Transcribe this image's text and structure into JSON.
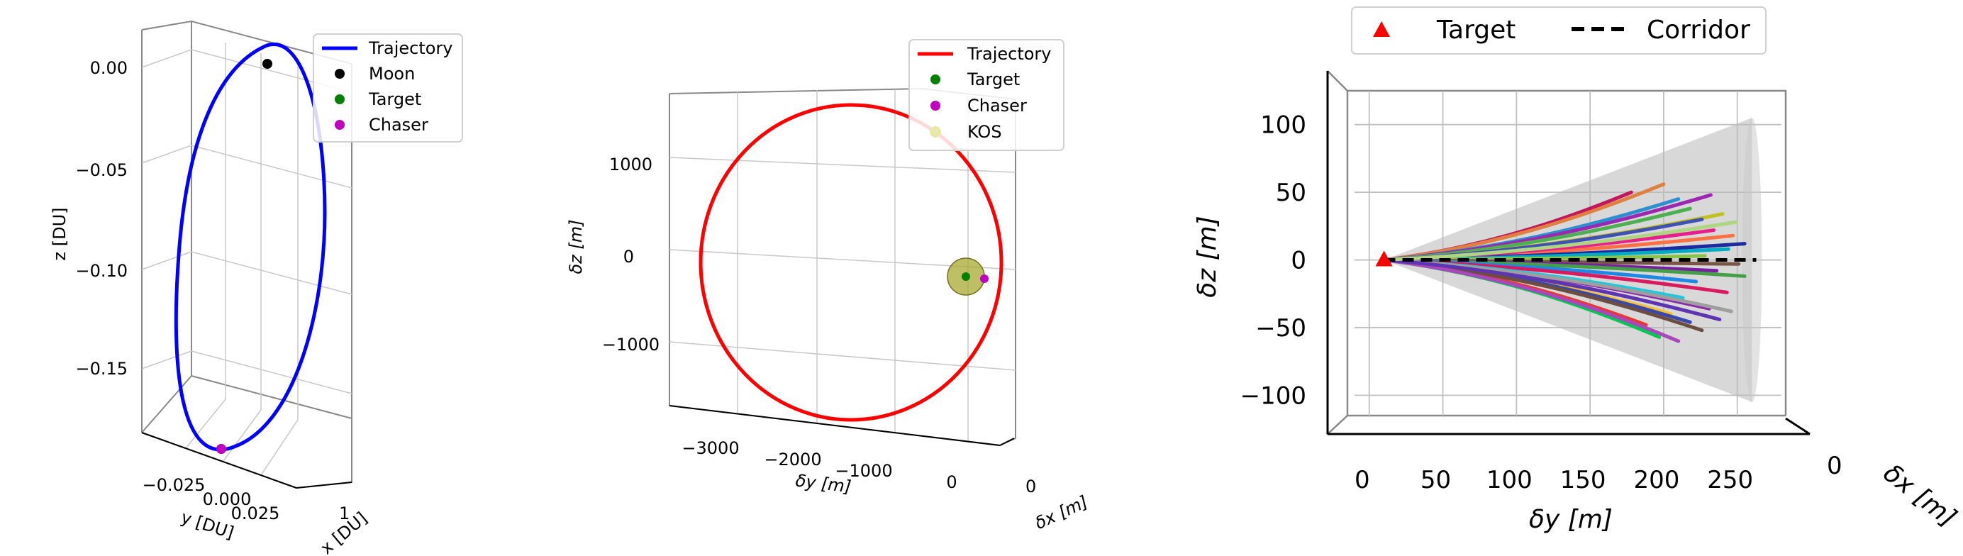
{
  "chart_data": [
    {
      "type": "line",
      "projection": "3d",
      "xlabel": "x [DU]",
      "ylabel": "y [DU]",
      "zlabel": "z [DU]",
      "x_ticks": [
        "1"
      ],
      "y_ticks": [
        "−0.025",
        "0.000",
        "0.025"
      ],
      "z_ticks": [
        "0.00",
        "−0.05",
        "−0.10",
        "−0.15"
      ],
      "zlim": [
        -0.19,
        0.03
      ],
      "legend": {
        "position": "top-right",
        "entries": [
          {
            "label": "Trajectory",
            "marker": "line",
            "color": "#0000ff"
          },
          {
            "label": "Moon",
            "marker": "dot",
            "color": "#000000"
          },
          {
            "label": "Target",
            "marker": "dot",
            "color": "#008000"
          },
          {
            "label": "Chaser",
            "marker": "dot",
            "color": "#bf00bf"
          }
        ]
      },
      "series": [
        {
          "name": "Trajectory",
          "kind": "closed orbit",
          "z_range": [
            -0.188,
            0.012
          ],
          "color": "#0000ff"
        },
        {
          "name": "Moon",
          "kind": "point",
          "z": 0.002,
          "color": "#000000"
        },
        {
          "name": "Target",
          "kind": "point",
          "z": -0.188,
          "color": "#008000"
        },
        {
          "name": "Chaser",
          "kind": "point",
          "z": -0.188,
          "color": "#bf00bf"
        }
      ]
    },
    {
      "type": "line",
      "projection": "3d",
      "xlabel": "δy [m]",
      "ylabel": "δx [m]",
      "zlabel": "δz [m]",
      "x_ticks": [
        "−3000",
        "−2000",
        "−1000",
        "0"
      ],
      "y_ticks": [
        "0"
      ],
      "z_ticks": [
        "1000",
        "0",
        "−1000"
      ],
      "xlim": [
        -3400,
        300
      ],
      "zlim": [
        -1700,
        1800
      ],
      "legend": {
        "position": "top-right",
        "entries": [
          {
            "label": "Trajectory",
            "marker": "line",
            "color": "#ff0000"
          },
          {
            "label": "Target",
            "marker": "dot",
            "color": "#008000"
          },
          {
            "label": "Chaser",
            "marker": "dot",
            "color": "#bf00bf"
          },
          {
            "label": "KOS",
            "marker": "dot",
            "color": "#e8e8a8"
          }
        ]
      },
      "series": [
        {
          "name": "Trajectory",
          "kind": "closed ellipse",
          "dy_range": [
            -3000,
            0
          ],
          "dz_range": [
            -1550,
            1550
          ],
          "color": "#ff0000"
        },
        {
          "name": "Target",
          "kind": "point",
          "dy": 0,
          "dz": 0,
          "color": "#008000"
        },
        {
          "name": "Chaser",
          "kind": "point",
          "dy": 200,
          "dz": -20,
          "color": "#bf00bf"
        },
        {
          "name": "KOS",
          "kind": "sphere",
          "center": [
            0,
            0
          ],
          "radius_m": 200,
          "color": "#a8a830"
        }
      ]
    },
    {
      "type": "line",
      "projection": "3d",
      "xlabel": "δy [m]",
      "ylabel": "δx [m]",
      "zlabel": "δz [m]",
      "x_ticks": [
        "0",
        "50",
        "100",
        "150",
        "200",
        "250"
      ],
      "y_ticks": [
        "0"
      ],
      "z_ticks": [
        "100",
        "50",
        "0",
        "−50",
        "−100"
      ],
      "xlim": [
        -10,
        280
      ],
      "zlim": [
        -115,
        125
      ],
      "legend": {
        "position": "top",
        "entries": [
          {
            "label": "Target",
            "marker": "triangle",
            "color": "#ff0000"
          },
          {
            "label": "Corridor",
            "marker": "dashed",
            "color": "#000000"
          }
        ]
      },
      "corridor": {
        "from_dy": 10,
        "to_dy": 260,
        "half_width_end": 105,
        "fill": "#b8b8b8"
      },
      "target": {
        "dy": 10,
        "dz": 0
      },
      "trajectories": [
        {
          "end_dy": 178,
          "end_dz": 50,
          "color": "#c2185b"
        },
        {
          "end_dy": 200,
          "end_dz": 56,
          "color": "#e08040"
        },
        {
          "end_dy": 210,
          "end_dz": 45,
          "color": "#2d8fd0"
        },
        {
          "end_dy": 232,
          "end_dz": 48,
          "color": "#9c27b0"
        },
        {
          "end_dy": 218,
          "end_dz": 38,
          "color": "#4caf50"
        },
        {
          "end_dy": 240,
          "end_dz": 34,
          "color": "#c0c020"
        },
        {
          "end_dy": 226,
          "end_dz": 30,
          "color": "#3f51b5"
        },
        {
          "end_dy": 247,
          "end_dz": 18,
          "color": "#ff7043"
        },
        {
          "end_dy": 255,
          "end_dz": 12,
          "color": "#1e2aa0"
        },
        {
          "end_dy": 234,
          "end_dz": 22,
          "color": "#e91e8c"
        },
        {
          "end_dy": 244,
          "end_dz": 8,
          "color": "#00acc1"
        },
        {
          "end_dy": 228,
          "end_dz": 3,
          "color": "#8bc34a"
        },
        {
          "end_dy": 251,
          "end_dz": -3,
          "color": "#795548"
        },
        {
          "end_dy": 236,
          "end_dz": -8,
          "color": "#7b1fa2"
        },
        {
          "end_dy": 255,
          "end_dz": -12,
          "color": "#43a047"
        },
        {
          "end_dy": 222,
          "end_dz": -16,
          "color": "#1e88e5"
        },
        {
          "end_dy": 243,
          "end_dz": -24,
          "color": "#d81b60"
        },
        {
          "end_dy": 213,
          "end_dz": -28,
          "color": "#26c6da"
        },
        {
          "end_dy": 231,
          "end_dz": -36,
          "color": "#8e24aa"
        },
        {
          "end_dy": 205,
          "end_dz": -40,
          "color": "#fbc02d"
        },
        {
          "end_dy": 218,
          "end_dz": -46,
          "color": "#3949ab"
        },
        {
          "end_dy": 188,
          "end_dz": -48,
          "color": "#e53935"
        },
        {
          "end_dy": 197,
          "end_dz": -57,
          "color": "#00c853"
        },
        {
          "end_dy": 226,
          "end_dz": -52,
          "color": "#6d4c41"
        },
        {
          "end_dy": 210,
          "end_dz": -60,
          "color": "#ab47bc"
        },
        {
          "end_dy": 246,
          "end_dz": -38,
          "color": "#9e9e9e"
        },
        {
          "end_dy": 238,
          "end_dz": -44,
          "color": "#5e35b1"
        },
        {
          "end_dy": 249,
          "end_dz": 28,
          "color": "#aed581"
        }
      ]
    }
  ]
}
